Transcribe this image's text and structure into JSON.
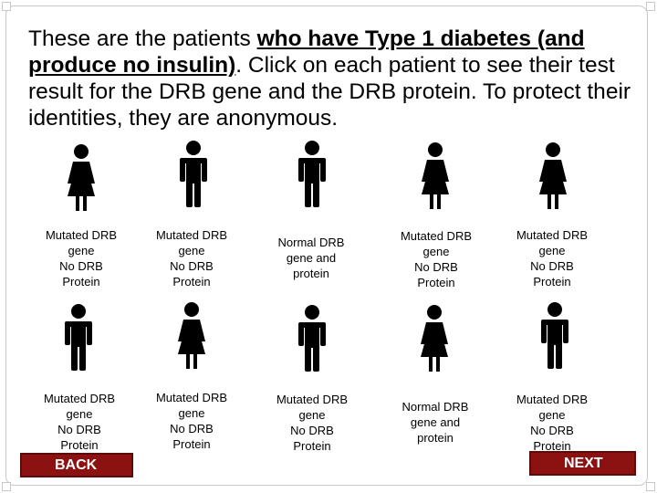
{
  "instructions": {
    "before": "These are the patients ",
    "emphasis": "who have Type 1 diabetes (and produce no insulin)",
    "after": ". Click on each patient to see their test result for the DRB gene and the DRB protein. To protect their identities, they are anonymous."
  },
  "patients": [
    {
      "icon": "female-person-icon",
      "lines": [
        "Mutated DRB",
        "gene",
        "No DRB",
        "Protein"
      ]
    },
    {
      "icon": "male-person-icon",
      "lines": [
        "Mutated DRB",
        "gene",
        "No DRB",
        "Protein"
      ]
    },
    {
      "icon": "male-person-icon",
      "lines": [
        "Normal DRB",
        "gene and",
        "protein"
      ]
    },
    {
      "icon": "female-person-icon",
      "lines": [
        "Mutated DRB",
        "gene",
        "No DRB",
        "Protein"
      ]
    },
    {
      "icon": "female-person-icon",
      "lines": [
        "Mutated DRB",
        "gene",
        "No DRB",
        "Protein"
      ]
    },
    {
      "icon": "male-person-icon",
      "lines": [
        "Mutated DRB",
        "gene",
        "No DRB",
        "Protein"
      ]
    },
    {
      "icon": "female-person-icon",
      "lines": [
        "Mutated DRB",
        "gene",
        "No DRB",
        "Protein"
      ]
    },
    {
      "icon": "male-person-icon",
      "lines": [
        "Mutated DRB",
        "gene",
        "No DRB",
        "Protein"
      ]
    },
    {
      "icon": "female-person-icon",
      "lines": [
        "Normal DRB",
        "gene and",
        "protein"
      ]
    },
    {
      "icon": "male-person-icon",
      "lines": [
        "Mutated DRB",
        "gene",
        "No DRB",
        "Protein"
      ]
    }
  ],
  "nav": {
    "back_label": "BACK",
    "next_label": "NEXT"
  },
  "colors": {
    "button": "#8c1212",
    "icon": "#000000"
  }
}
